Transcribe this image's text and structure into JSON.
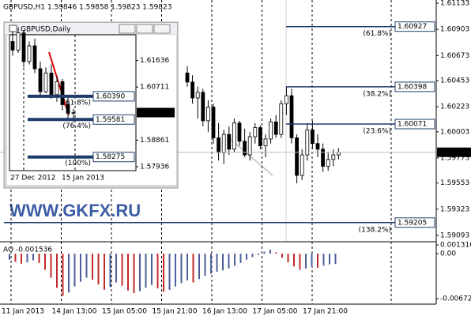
{
  "chart_data": [
    {
      "type": "candlestick",
      "title": "GBPUSD,H1 1.59846 1.59858 1.59823 1.59823",
      "watermark": "WWW.GKFX.RU",
      "ylim": [
        1.59037,
        1.61161
      ],
      "yticks": [
        1.61133,
        1.60903,
        1.60673,
        1.60453,
        1.60223,
        1.60003,
        1.59773,
        1.59553,
        1.59323,
        1.59093
      ],
      "last_price": 1.59823,
      "x_labels": [
        "11 Jan 2013",
        "14 Jan 13:00",
        "15 Jan 05:00",
        "15 Jan 21:00",
        "16 Jan 13:00",
        "17 Jan 05:00",
        "17 Jan 21:00"
      ],
      "open": [
        1.6052,
        1.6044,
        1.603,
        1.6035,
        1.601,
        1.6022,
        1.5995,
        1.5982,
        1.5998,
        1.5985,
        1.6008,
        1.5992,
        1.598,
        1.5996,
        1.6004,
        1.5988,
        1.5994,
        1.6009,
        1.5998,
        1.6025,
        1.6032,
        1.5995,
        1.5962,
        1.598,
        1.6002,
        1.599,
        1.5985,
        1.597,
        1.5976,
        1.598
      ],
      "high": [
        1.6058,
        1.605,
        1.604,
        1.6038,
        1.6028,
        1.6025,
        1.6008,
        1.6002,
        1.6005,
        1.6012,
        1.601,
        1.6003,
        1.6,
        1.6008,
        1.6006,
        1.5998,
        1.6012,
        1.6015,
        1.6028,
        1.604,
        1.6038,
        1.5998,
        1.5985,
        1.6008,
        1.601,
        1.5998,
        1.599,
        1.5982,
        1.5985,
        1.5986
      ],
      "low": [
        1.604,
        1.6025,
        1.6012,
        1.6005,
        1.6,
        1.599,
        1.5975,
        1.5972,
        1.598,
        1.5982,
        1.5988,
        1.5978,
        1.5975,
        1.599,
        1.5985,
        1.5978,
        1.599,
        1.5995,
        1.5995,
        1.6015,
        1.599,
        1.5955,
        1.5958,
        1.5975,
        1.5985,
        1.5978,
        1.5965,
        1.5966,
        1.597,
        1.5976
      ],
      "close": [
        1.6044,
        1.603,
        1.6035,
        1.601,
        1.6022,
        1.5995,
        1.5982,
        1.5998,
        1.5985,
        1.6008,
        1.5992,
        1.598,
        1.5996,
        1.6004,
        1.5988,
        1.5994,
        1.6009,
        1.5998,
        1.6025,
        1.6032,
        1.5995,
        1.5962,
        1.598,
        1.6002,
        1.599,
        1.5985,
        1.597,
        1.5976,
        1.598,
        1.59823
      ],
      "fib_levels": [
        {
          "label": "(61.8%)",
          "value": 1.60927
        },
        {
          "label": "(38.2%)",
          "value": 1.60398
        },
        {
          "label": "(23.6%)",
          "value": 1.60071
        },
        {
          "label": "(138.2%)",
          "value": 1.59205
        }
      ],
      "color": "#1f3d6b"
    },
    {
      "type": "bar",
      "title": "AO -0.001536",
      "ylim": [
        -0.00755,
        0.00179
      ],
      "yticks": [
        0.001316,
        {
          "value": 0,
          "label": "0.00"
        },
        -0.00672
      ],
      "up_color": "#4a5f9a",
      "down_color": "#c0282a",
      "values": [
        -0.0009,
        -0.0012,
        -0.0015,
        -0.0013,
        -0.001,
        -0.0014,
        -0.0024,
        -0.0036,
        -0.0051,
        -0.0063,
        -0.0058,
        -0.0049,
        -0.0042,
        -0.0036,
        -0.0039,
        -0.0046,
        -0.0054,
        -0.005,
        -0.0043,
        -0.0048,
        -0.0055,
        -0.0059,
        -0.0056,
        -0.0051,
        -0.0047,
        -0.0052,
        -0.0057,
        -0.0054,
        -0.0049,
        -0.0044,
        -0.004,
        -0.0043,
        -0.0038,
        -0.0033,
        -0.003,
        -0.0027,
        -0.0025,
        -0.0022,
        -0.0018,
        -0.0014,
        -0.0009,
        -0.0005,
        -0.0002,
        0.0003,
        0.0006,
        0.0002,
        -0.0006,
        -0.0013,
        -0.0019,
        -0.0024,
        -0.0022,
        -0.0019,
        -0.0021,
        -0.0018,
        -0.0016,
        -0.001536
      ]
    },
    {
      "type": "candlestick",
      "title": "GBPUSD,Daily",
      "ylim": [
        1.578,
        1.62534
      ],
      "yticks": [
        1.61636,
        1.60711,
        1.58861,
        1.57936
      ],
      "last_price": 1.59823,
      "x_labels": [
        "27 Dec 2012",
        "15 Jan 2013"
      ],
      "open": [
        1.623,
        1.62,
        1.626,
        1.616,
        1.6215,
        1.6135,
        1.6055,
        1.612,
        1.6045,
        1.609,
        1.601,
        1.598
      ],
      "high": [
        1.6265,
        1.628,
        1.627,
        1.623,
        1.624,
        1.616,
        1.614,
        1.615,
        1.611,
        1.61,
        1.604,
        1.5995
      ],
      "low": [
        1.618,
        1.619,
        1.614,
        1.615,
        1.612,
        1.604,
        1.605,
        1.603,
        1.602,
        1.599,
        1.596,
        1.595
      ],
      "close": [
        1.62,
        1.626,
        1.616,
        1.6215,
        1.6135,
        1.6055,
        1.612,
        1.6045,
        1.609,
        1.601,
        1.598,
        1.59823
      ],
      "fib_levels": [
        {
          "label": "(61.8%)",
          "value": {
            "value": 1.6039,
            "label": "1.60390"
          }
        },
        {
          "label": "(76.4%)",
          "value": 1.59581
        },
        {
          "label": "(100%)",
          "value": 1.58275
        }
      ],
      "color": "#1f3d6b"
    }
  ]
}
